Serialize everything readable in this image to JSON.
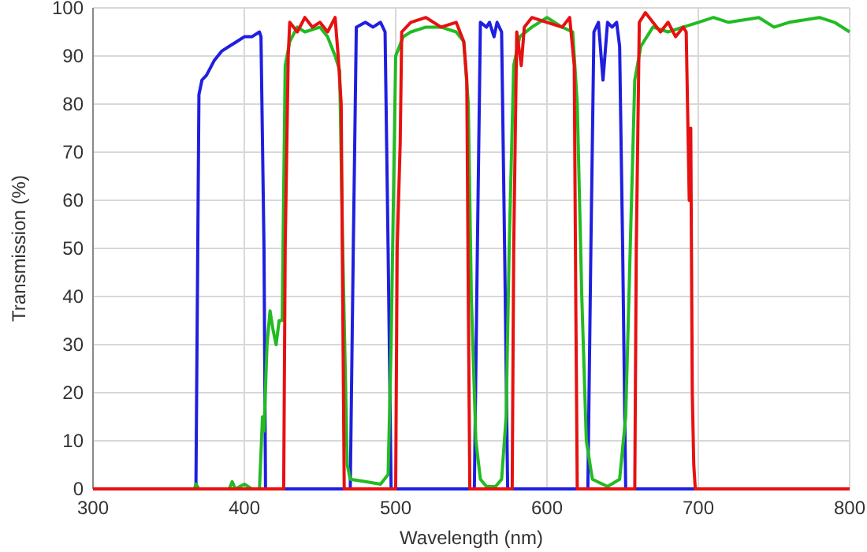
{
  "chart_data": {
    "type": "line",
    "xlabel": "Wavelength (nm)",
    "ylabel": "Transmission (%)",
    "xlim": [
      300,
      800
    ],
    "ylim": [
      0,
      100
    ],
    "xticks": [
      300,
      400,
      500,
      600,
      700,
      800
    ],
    "yticks": [
      0,
      10,
      20,
      30,
      40,
      50,
      60,
      70,
      80,
      90,
      100
    ],
    "grid": true,
    "marker": "none",
    "line_style": "solid",
    "series": [
      {
        "color": "#1f1fe0",
        "x": [
          300,
          367,
          368,
          370,
          372,
          375,
          380,
          385,
          390,
          395,
          400,
          405,
          410,
          411,
          413,
          414,
          470,
          472,
          474,
          480,
          485,
          490,
          493,
          495,
          497,
          552,
          554,
          556,
          560,
          562,
          565,
          567,
          570,
          572,
          574,
          627,
          629,
          631,
          634,
          637,
          640,
          643,
          646,
          648,
          650,
          652,
          800
        ],
        "values": [
          0,
          0,
          0,
          82,
          85,
          86,
          89,
          91,
          92,
          93,
          94,
          94,
          95,
          94,
          50,
          0,
          0,
          50,
          96,
          97,
          96,
          97,
          95,
          50,
          0,
          0,
          50,
          97,
          96,
          97,
          94,
          97,
          95,
          50,
          0,
          0,
          50,
          95,
          97,
          85,
          97,
          96,
          97,
          92,
          50,
          0,
          0
        ]
      },
      {
        "color": "#22bb22",
        "x": [
          300,
          367,
          368,
          370,
          380,
          390,
          392,
          394,
          400,
          405,
          410,
          412,
          413,
          415,
          417,
          419,
          421,
          423,
          425,
          427,
          430,
          435,
          440,
          450,
          455,
          460,
          463,
          465,
          468,
          470,
          480,
          490,
          495,
          497,
          500,
          505,
          510,
          520,
          530,
          540,
          545,
          548,
          550,
          553,
          556,
          560,
          566,
          570,
          573,
          575,
          578,
          582,
          590,
          600,
          610,
          617,
          620,
          623,
          626,
          630,
          640,
          648,
          652,
          655,
          658,
          662,
          670,
          680,
          690,
          700,
          710,
          720,
          740,
          750,
          760,
          780,
          790,
          800
        ],
        "values": [
          0,
          0,
          1,
          0,
          0,
          0,
          1.5,
          0,
          1,
          0,
          0,
          15,
          12,
          30,
          37,
          33,
          30,
          35,
          35,
          88,
          93,
          96,
          95,
          96,
          94,
          90,
          87,
          50,
          5,
          2,
          1.5,
          1,
          3,
          30,
          90,
          94,
          95,
          96,
          96,
          95,
          93,
          80,
          40,
          10,
          2,
          0.5,
          0.5,
          2,
          15,
          50,
          88,
          94,
          96,
          98,
          96,
          95,
          80,
          40,
          10,
          2,
          0.5,
          2,
          15,
          50,
          85,
          92,
          96,
          95,
          96,
          97,
          98,
          97,
          98,
          96,
          97,
          98,
          97,
          95
        ]
      },
      {
        "color": "#e81010",
        "x": [
          300,
          426,
          427,
          429,
          430,
          435,
          440,
          445,
          450,
          455,
          460,
          462,
          464,
          465,
          466,
          500,
          501,
          503,
          504,
          510,
          520,
          530,
          540,
          545,
          547,
          548,
          549,
          577,
          578,
          580,
          583,
          585,
          590,
          600,
          610,
          615,
          618,
          619,
          620,
          658,
          659,
          661,
          665,
          670,
          675,
          680,
          685,
          690,
          692,
          694,
          695,
          696,
          697,
          698,
          800
        ],
        "values": [
          0,
          0,
          50,
          90,
          97,
          95,
          98,
          96,
          97,
          95,
          98,
          90,
          80,
          40,
          0,
          0,
          50,
          72,
          95,
          97,
          98,
          96,
          97,
          93,
          85,
          40,
          0,
          0,
          50,
          95,
          88,
          96,
          98,
          97,
          96,
          98,
          88,
          40,
          0,
          0,
          50,
          97,
          99,
          97,
          95,
          97,
          94,
          96,
          95,
          60,
          75,
          20,
          5,
          0,
          0
        ]
      }
    ]
  }
}
